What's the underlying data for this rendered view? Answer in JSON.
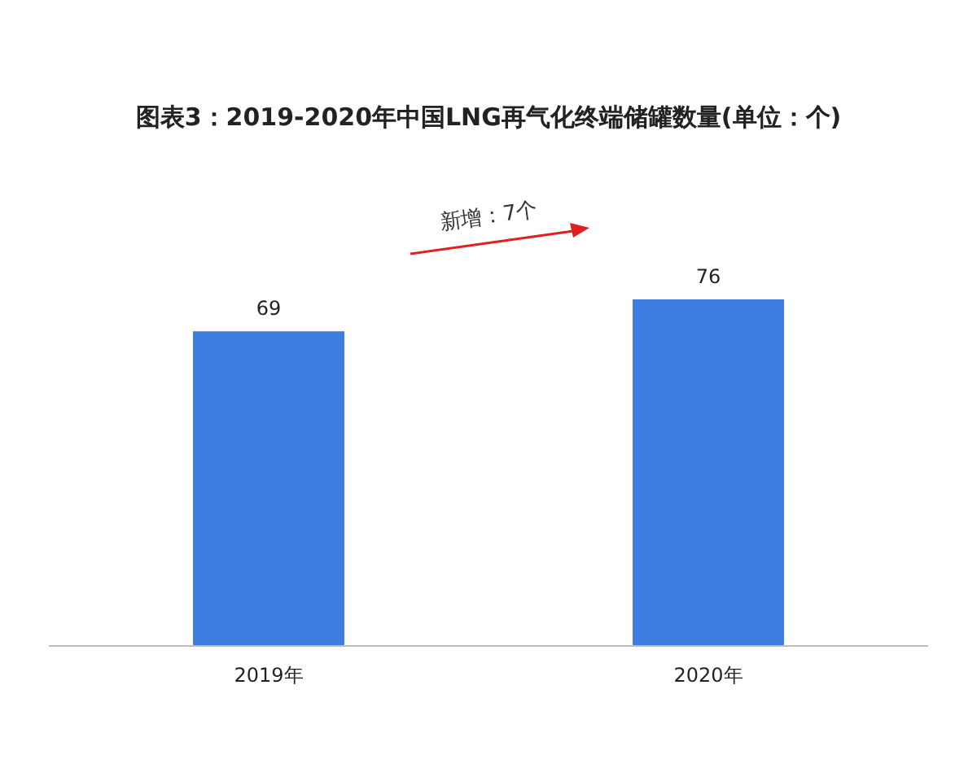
{
  "chart_data": {
    "type": "bar",
    "title": "图表3：2019-2020年中国LNG再气化终端储罐数量(单位：个)",
    "categories": [
      "2019年",
      "2020年"
    ],
    "values": [
      69,
      76
    ],
    "color": "#3d7ee0",
    "data_labels": true,
    "annotations": [
      "新增：7个"
    ]
  }
}
